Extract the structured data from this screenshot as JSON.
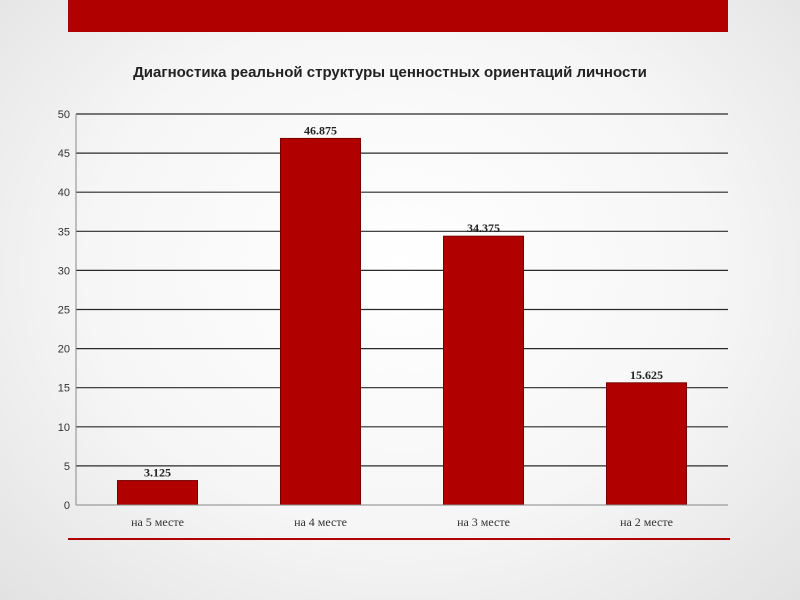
{
  "chart_data": {
    "type": "bar",
    "title": "Диагностика реальной структуры ценностных ориентаций личности",
    "categories": [
      "на 5 месте",
      "на 4 месте",
      "на 3 месте",
      "на 2 месте"
    ],
    "values": [
      3.125,
      46.875,
      34.375,
      15.625
    ],
    "data_labels": [
      "3.125",
      "46.875",
      "34.375",
      "15.625"
    ],
    "ylim": [
      0,
      50
    ],
    "yticks": [
      0,
      5,
      10,
      15,
      20,
      25,
      30,
      35,
      40,
      45,
      50
    ],
    "xlabel": "",
    "ylabel": "",
    "grid": true,
    "legend": "none",
    "bar_color": "#b00000"
  },
  "colors": {
    "accent": "#b00000"
  }
}
